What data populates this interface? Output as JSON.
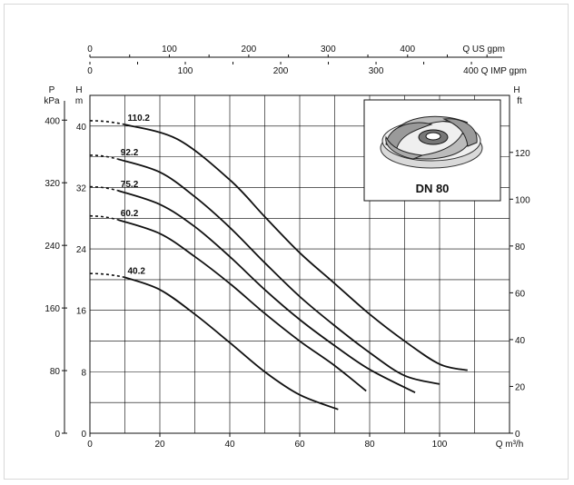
{
  "chart_data": {
    "type": "line",
    "x_unit_label": "Q m³/h",
    "xlim": [
      0,
      120
    ],
    "x_ticks": [
      0,
      20,
      40,
      60,
      80,
      100
    ],
    "axes_labels": {
      "p": [
        "P",
        "kPa"
      ],
      "h_m": [
        "H",
        "m"
      ],
      "h_ft": [
        "H",
        "ft"
      ]
    },
    "ylim_m": [
      0,
      44
    ],
    "y_ticks_m": [
      0,
      8,
      16,
      24,
      32,
      40
    ],
    "y_ticks_kpa": [
      0,
      80,
      160,
      240,
      320,
      400
    ],
    "y_ticks_ft": [
      0,
      20,
      40,
      60,
      80,
      100,
      120
    ],
    "top_axes": [
      {
        "label": "Q US gpm",
        "ticks": [
          0,
          100,
          200,
          300,
          400
        ],
        "m3h_per_unit": 0.22712
      },
      {
        "label": "400 Q IMP gpm",
        "ticks": [
          0,
          100,
          200,
          300
        ],
        "m3h_per_unit": 0.27277
      }
    ],
    "series": [
      {
        "name": "110.2",
        "dashed_x": [
          0,
          10
        ],
        "x": [
          10,
          25,
          40,
          50,
          60,
          70,
          80,
          90,
          100,
          108
        ],
        "y": [
          40.2,
          38.3,
          33.0,
          28.2,
          23.5,
          19.5,
          15.5,
          12.0,
          9.0,
          8.2
        ]
      },
      {
        "name": "92.2",
        "dashed_x": [
          0,
          8
        ],
        "x": [
          8,
          20,
          30,
          40,
          50,
          60,
          70,
          80,
          90,
          100
        ],
        "y": [
          35.7,
          34.0,
          30.8,
          26.8,
          22.2,
          17.8,
          14.0,
          10.5,
          7.5,
          6.4
        ]
      },
      {
        "name": "75.2",
        "dashed_x": [
          0,
          8
        ],
        "x": [
          8,
          20,
          30,
          40,
          50,
          60,
          70,
          80,
          93
        ],
        "y": [
          31.6,
          29.8,
          26.9,
          23.0,
          18.7,
          14.8,
          11.4,
          8.3,
          5.3
        ]
      },
      {
        "name": "60.2",
        "dashed_x": [
          0,
          8
        ],
        "x": [
          8,
          20,
          30,
          40,
          50,
          60,
          70,
          79
        ],
        "y": [
          27.8,
          26.0,
          23.0,
          19.5,
          15.6,
          12.0,
          8.8,
          5.5
        ]
      },
      {
        "name": "40.2",
        "dashed_x": [
          0,
          10
        ],
        "x": [
          10,
          20,
          30,
          40,
          50,
          60,
          71
        ],
        "y": [
          20.3,
          18.7,
          15.5,
          11.8,
          8.0,
          5.0,
          3.1
        ]
      }
    ],
    "grid": true,
    "inset_caption": "DN 80",
    "colors": {
      "line": "#111111",
      "grid": "#000000",
      "frame": "#d8d8d8"
    }
  }
}
